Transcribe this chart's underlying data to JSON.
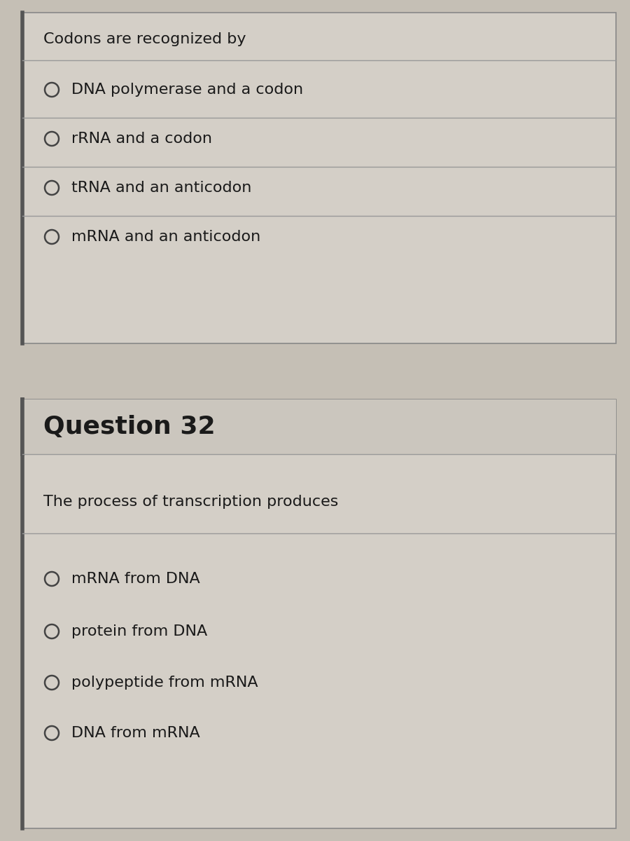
{
  "bg_color": "#c5bfb5",
  "box_bg": "#d4cfc7",
  "question1_title": "Codons are recognized by",
  "question1_options": [
    "DNA polymerase and a codon",
    "rRNA and a codon",
    "tRNA and an anticodon",
    "mRNA and an anticodon"
  ],
  "question2_label": "Question 32",
  "question2_title": "The process of transcription produces",
  "question2_options": [
    "mRNA from DNA",
    "protein from DNA",
    "polypeptide from mRNA",
    "DNA from mRNA"
  ],
  "title_fontsize": 16,
  "option_fontsize": 16,
  "q2_label_fontsize": 26,
  "text_color": "#1a1a1a",
  "line_color": "#999999",
  "circle_color": "#444444",
  "border_color": "#555555",
  "box_edge_color": "#888888"
}
